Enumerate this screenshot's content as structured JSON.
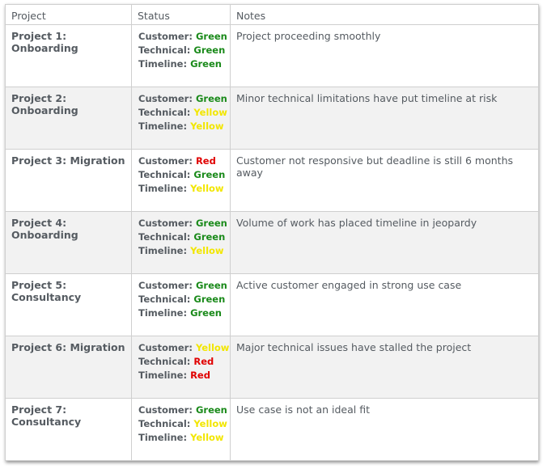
{
  "headers": {
    "project": "Project",
    "status": "Status",
    "notes": "Notes"
  },
  "labels": {
    "customer": "Customer:",
    "technical": "Technical:",
    "timeline": "Timeline:"
  },
  "colors": {
    "Green": "#1a8a1a",
    "Yellow": "#f2e600",
    "Red": "#e00000"
  },
  "rows": [
    {
      "project": "Project 1: Onboarding",
      "customer": "Green",
      "technical": "Green",
      "timeline": "Green",
      "notes": "Project proceeding smoothly"
    },
    {
      "project": "Project 2: Onboarding",
      "customer": "Green",
      "technical": "Yellow",
      "timeline": "Yellow",
      "notes": "Minor technical limitations have put timeline at risk"
    },
    {
      "project": "Project 3: Migration",
      "customer": "Red",
      "technical": "Green",
      "timeline": "Yellow",
      "notes": "Customer not responsive but deadline is still 6 months away"
    },
    {
      "project": "Project 4: Onboarding",
      "customer": "Green",
      "technical": "Green",
      "timeline": "Yellow",
      "notes": "Volume of work has placed timeline in jeopardy"
    },
    {
      "project": "Project 5: Consultancy",
      "customer": "Green",
      "technical": "Green",
      "timeline": "Green",
      "notes": "Active customer engaged in strong use case"
    },
    {
      "project": "Project 6: Migration",
      "customer": "Yellow",
      "technical": "Red",
      "timeline": "Red",
      "notes": "Major technical issues have stalled the project"
    },
    {
      "project": "Project 7: Consultancy",
      "customer": "Green",
      "technical": "Yellow",
      "timeline": "Yellow",
      "notes": "Use case is not an ideal fit"
    }
  ]
}
